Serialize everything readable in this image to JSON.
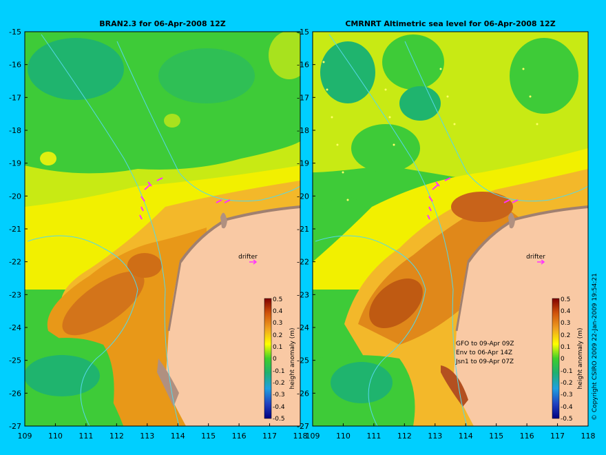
{
  "panels": [
    {
      "title": "BRAN2.3 for 06-Apr-2008 12Z"
    },
    {
      "title": "CMRNRT Altimetric sea level  for 06-Apr-2008 12Z"
    }
  ],
  "y_ticks": [
    "-15",
    "-16",
    "-17",
    "-18",
    "-19",
    "-20",
    "-21",
    "-22",
    "-23",
    "-24",
    "-25",
    "-26",
    "-27"
  ],
  "x_ticks": [
    "109",
    "110",
    "111",
    "112",
    "113",
    "114",
    "115",
    "116",
    "117",
    "118"
  ],
  "colorbar": {
    "label": "height anomaly (m)",
    "ticks": [
      "0.5",
      "0.4",
      "0.3",
      "0.2",
      "0.1",
      "0",
      "-0.1",
      "-0.2",
      "-0.3",
      "-0.4",
      "-0.5"
    ]
  },
  "drifter_label": "drifter",
  "satellite_passes": [
    "GFO to 09-Apr 09Z",
    "Env to 06-Apr 14Z",
    "Jsn1 to 09-Apr 07Z"
  ],
  "copyright": "© Copyright CSIRO 2009   22-Jan-2009 19:54:21",
  "colors": {
    "background": "#00cfff",
    "land": "#f9c9a4",
    "sea_green": "#37c43a",
    "drifter": "#ff33ff"
  }
}
